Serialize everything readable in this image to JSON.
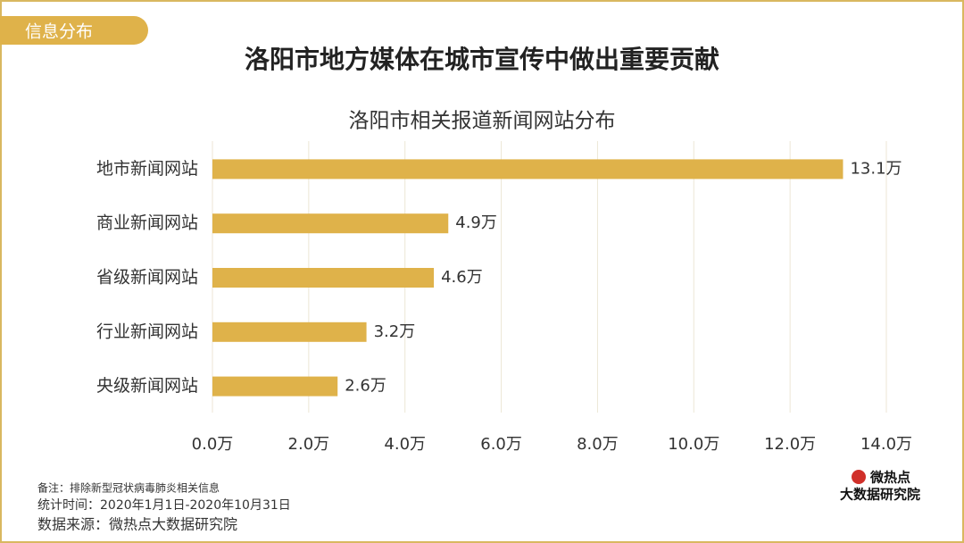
{
  "header": {
    "tag": "信息分布",
    "title": "洛阳市地方媒体在城市宣传中做出重要贡献"
  },
  "chart_data": {
    "type": "bar",
    "orientation": "horizontal",
    "title": "洛阳市相关报道新闻网站分布",
    "categories": [
      "地市新闻网站",
      "商业新闻网站",
      "省级新闻网站",
      "行业新闻网站",
      "央级新闻网站"
    ],
    "values": [
      13.1,
      4.9,
      4.6,
      3.2,
      2.6
    ],
    "value_labels": [
      "13.1万",
      "4.9万",
      "4.6万",
      "3.2万",
      "2.6万"
    ],
    "color": "#dfb24a",
    "xlim": [
      0,
      14
    ],
    "xticks": [
      {
        "value": 0,
        "label": "0.0万"
      },
      {
        "value": 2,
        "label": "2.0万"
      },
      {
        "value": 4,
        "label": "4.0万"
      },
      {
        "value": 6,
        "label": "6.0万"
      },
      {
        "value": 8,
        "label": "8.0万"
      },
      {
        "value": 10,
        "label": "10.0万"
      },
      {
        "value": 12,
        "label": "12.0万"
      },
      {
        "value": 14,
        "label": "14.0万"
      }
    ],
    "grid": true
  },
  "footer": {
    "note": "备注：排除新型冠状病毒肺炎相关信息",
    "period": "统计时间：2020年1月1日-2020年10月31日",
    "source": "数据来源：微热点大数据研究院"
  },
  "logo": {
    "brand": "微热点",
    "institute": "大数据研究院"
  }
}
